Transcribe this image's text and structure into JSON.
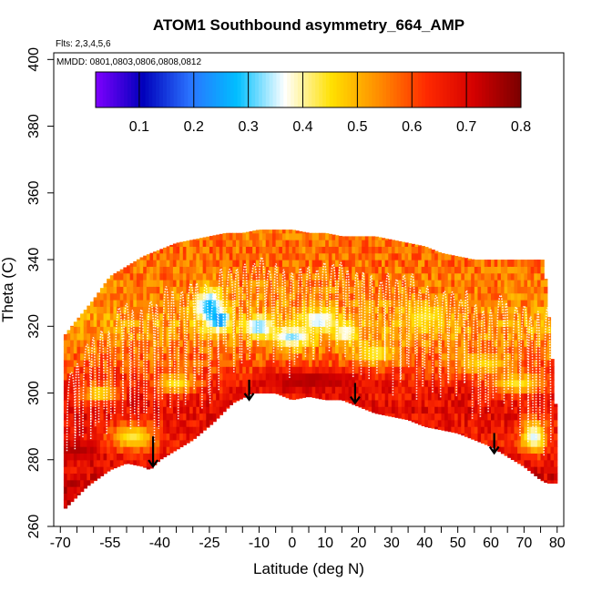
{
  "chart_data": {
    "type": "heatmap",
    "title": "ATOM1 Southbound asymmetry_664_AMP",
    "note_flights": "Flts: 2,3,4,5,6",
    "note_dates": "MMDD: 0801,0803,0806,0808,0812",
    "xlabel": "Latitude (deg N)",
    "ylabel": "Theta (C)",
    "xlim": [
      -72,
      82
    ],
    "ylim": [
      260,
      402
    ],
    "x_tick_labels": [
      -70,
      -55,
      -40,
      -25,
      -10,
      0,
      10,
      20,
      30,
      40,
      50,
      60,
      70,
      80
    ],
    "x_minor_ticks": [
      -70,
      -65,
      -60,
      -55,
      -50,
      -45,
      -40,
      -35,
      -30,
      -25,
      -20,
      -15,
      -10,
      -5,
      0,
      5,
      10,
      15,
      20,
      25,
      30,
      35,
      40,
      45,
      50,
      55,
      60,
      65,
      70,
      75,
      80
    ],
    "y_ticks": [
      260,
      280,
      300,
      320,
      340,
      360,
      380,
      400
    ],
    "colorbar": {
      "range": [
        0.02,
        0.8
      ],
      "tick_values": [
        0.1,
        0.2,
        0.3,
        0.4,
        0.5,
        0.6,
        0.7,
        0.8
      ],
      "tick_labels": [
        "0.1",
        "0.2",
        "0.3",
        "0.4",
        "0.5",
        "0.6",
        "0.7",
        "0.8"
      ],
      "colors": [
        "#7f00ff",
        "#0000bb",
        "#2a73ff",
        "#00bfff",
        "#ffffff",
        "#ffe000",
        "#ff8c00",
        "#ff2a00",
        "#d40000",
        "#7a0000"
      ]
    },
    "top_envelope": [
      [
        -69,
        317
      ],
      [
        -65,
        322
      ],
      [
        -60,
        328
      ],
      [
        -55,
        335
      ],
      [
        -50,
        338
      ],
      [
        -45,
        341
      ],
      [
        -40,
        343
      ],
      [
        -35,
        345
      ],
      [
        -30,
        346
      ],
      [
        -25,
        347
      ],
      [
        -20,
        348
      ],
      [
        -15,
        348
      ],
      [
        -10,
        349
      ],
      [
        -5,
        349
      ],
      [
        0,
        349
      ],
      [
        5,
        348
      ],
      [
        10,
        348
      ],
      [
        15,
        347
      ],
      [
        20,
        347
      ],
      [
        25,
        347
      ],
      [
        30,
        346
      ],
      [
        35,
        345
      ],
      [
        40,
        344
      ],
      [
        45,
        342
      ],
      [
        50,
        341
      ],
      [
        55,
        340
      ],
      [
        60,
        340
      ],
      [
        65,
        340
      ],
      [
        70,
        340
      ],
      [
        75,
        340
      ],
      [
        76,
        340
      ],
      [
        78,
        317
      ],
      [
        80,
        290
      ],
      [
        80,
        276
      ]
    ],
    "bottom_envelope": [
      [
        -69,
        265
      ],
      [
        -62,
        272
      ],
      [
        -55,
        277
      ],
      [
        -50,
        279
      ],
      [
        -45,
        278
      ],
      [
        -43,
        277
      ],
      [
        -40,
        280
      ],
      [
        -30,
        286
      ],
      [
        -24,
        291
      ],
      [
        -18,
        297
      ],
      [
        -12,
        300
      ],
      [
        -5,
        300
      ],
      [
        0,
        298
      ],
      [
        5,
        299
      ],
      [
        10,
        298
      ],
      [
        15,
        298
      ],
      [
        20,
        296
      ],
      [
        25,
        294
      ],
      [
        30,
        293
      ],
      [
        35,
        292
      ],
      [
        40,
        290
      ],
      [
        45,
        289
      ],
      [
        50,
        288
      ],
      [
        55,
        286
      ],
      [
        60,
        284
      ],
      [
        65,
        281
      ],
      [
        70,
        278
      ],
      [
        75,
        274
      ],
      [
        77,
        273
      ],
      [
        80,
        273
      ]
    ],
    "base_profile": [
      [
        265,
        0.72
      ],
      [
        275,
        0.7
      ],
      [
        285,
        0.66
      ],
      [
        295,
        0.68
      ],
      [
        302,
        0.66
      ],
      [
        310,
        0.58
      ],
      [
        320,
        0.52
      ],
      [
        330,
        0.55
      ],
      [
        340,
        0.57
      ],
      [
        350,
        0.56
      ]
    ],
    "anomalies": [
      {
        "lat": -48,
        "theta": 287,
        "value": 0.43,
        "rlat": 7,
        "rtheta": 4
      },
      {
        "lat": -58,
        "theta": 300,
        "value": 0.45,
        "rlat": 6,
        "rtheta": 3
      },
      {
        "lat": -35,
        "theta": 303,
        "value": 0.44,
        "rlat": 6,
        "rtheta": 3
      },
      {
        "lat": -25,
        "theta": 326,
        "value": 0.26,
        "rlat": 4,
        "rtheta": 5
      },
      {
        "lat": -22,
        "theta": 322,
        "value": 0.22,
        "rlat": 3,
        "rtheta": 3
      },
      {
        "lat": -10,
        "theta": 320,
        "value": 0.3,
        "rlat": 4,
        "rtheta": 3
      },
      {
        "lat": 0,
        "theta": 317,
        "value": 0.32,
        "rlat": 6,
        "rtheta": 3
      },
      {
        "lat": 8,
        "theta": 322,
        "value": 0.33,
        "rlat": 5,
        "rtheta": 3
      },
      {
        "lat": 16,
        "theta": 318,
        "value": 0.36,
        "rlat": 4,
        "rtheta": 3
      },
      {
        "lat": 25,
        "theta": 312,
        "value": 0.42,
        "rlat": 6,
        "rtheta": 3
      },
      {
        "lat": 40,
        "theta": 323,
        "value": 0.44,
        "rlat": 6,
        "rtheta": 4
      },
      {
        "lat": 58,
        "theta": 309,
        "value": 0.46,
        "rlat": 8,
        "rtheta": 3
      },
      {
        "lat": 68,
        "theta": 303,
        "value": 0.44,
        "rlat": 8,
        "rtheta": 3
      },
      {
        "lat": 73,
        "theta": 287,
        "value": 0.35,
        "rlat": 4,
        "rtheta": 5
      },
      {
        "lat": 5,
        "theta": 304,
        "value": 0.75,
        "rlat": 15,
        "rtheta": 3
      },
      {
        "lat": -65,
        "theta": 283,
        "value": 0.75,
        "rlat": 6,
        "rtheta": 3
      }
    ],
    "arrows": [
      {
        "lat": -42,
        "theta_top": 287,
        "theta_bottom": 278
      },
      {
        "lat": -13,
        "theta_top": 304,
        "theta_bottom": 298
      },
      {
        "lat": 19,
        "theta_top": 303,
        "theta_bottom": 297
      },
      {
        "lat": 61,
        "theta_top": 288,
        "theta_bottom": 282
      }
    ]
  }
}
